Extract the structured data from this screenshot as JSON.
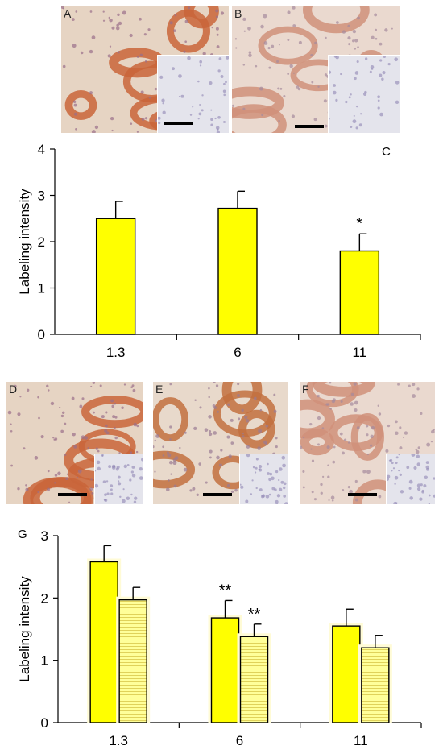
{
  "panels": {
    "top": [
      {
        "letter": "A",
        "tone": "strong"
      },
      {
        "letter": "B",
        "tone": "weak"
      }
    ],
    "middle": [
      {
        "letter": "D",
        "tone": "strong"
      },
      {
        "letter": "E",
        "tone": "medium"
      },
      {
        "letter": "F",
        "tone": "weak"
      }
    ]
  },
  "chart_data": [
    {
      "type": "bar",
      "panel_label": "C",
      "categories": [
        "1.3",
        "6",
        "11"
      ],
      "series": [
        {
          "values": [
            2.5,
            2.72,
            1.8
          ],
          "errors": [
            0.37,
            0.37,
            0.37
          ],
          "color": "#ffff00",
          "pattern": "solid"
        }
      ],
      "annotations": [
        "",
        "",
        "*"
      ],
      "ylabel": "Labeling intensity",
      "xlabel": "",
      "ylim": [
        0,
        4
      ],
      "yticks": [
        "0",
        "1",
        "2",
        "3",
        "4"
      ],
      "grid": false
    },
    {
      "type": "bar",
      "panel_label": "G",
      "categories": [
        "1.3",
        "6",
        "11"
      ],
      "series": [
        {
          "values": [
            2.58,
            1.68,
            1.55
          ],
          "errors": [
            0.26,
            0.28,
            0.27
          ],
          "color": "#ffff00",
          "pattern": "solid"
        },
        {
          "values": [
            1.97,
            1.38,
            1.2
          ],
          "errors": [
            0.2,
            0.2,
            0.2
          ],
          "color": "#ffff99",
          "pattern": "horizontal-lines"
        }
      ],
      "annotations": [
        [
          "",
          ""
        ],
        [
          "**",
          "**"
        ],
        [
          "",
          ""
        ]
      ],
      "ylabel": "Labeling intensity",
      "xlabel": "",
      "ylim": [
        0,
        3
      ],
      "yticks": [
        "0",
        "1",
        "2",
        "3"
      ],
      "grid": false
    }
  ]
}
